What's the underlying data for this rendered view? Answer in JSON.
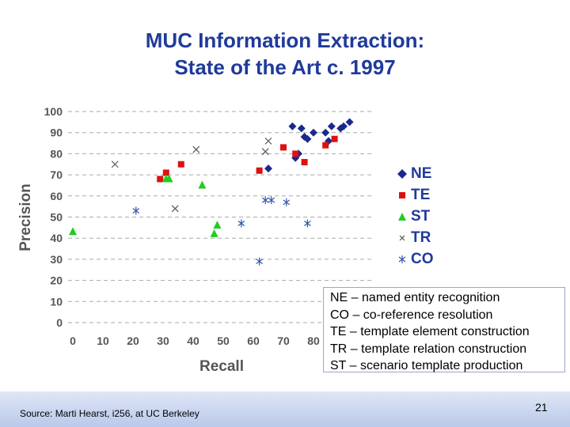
{
  "slide": {
    "title_line1": "MUC Information Extraction:",
    "title_line2": "State of the Art c. 1997",
    "notes": [
      "NE – named entity recognition",
      "CO – co-reference resolution",
      "TE – template element construction",
      "TR – template relation construction",
      "ST – scenario template production"
    ],
    "source": "Source: Marti Hearst, i256, at UC Berkeley",
    "page_number": "21"
  },
  "chart_data": {
    "type": "scatter",
    "xlabel": "Recall",
    "ylabel": "Precision",
    "xlim": [
      0,
      100
    ],
    "ylim": [
      0,
      100
    ],
    "x_ticks": [
      "0",
      "10",
      "20",
      "30",
      "40",
      "50",
      "60",
      "70",
      "80"
    ],
    "y_ticks": [
      "0",
      "10",
      "20",
      "30",
      "40",
      "50",
      "60",
      "70",
      "80",
      "90",
      "100"
    ],
    "grid": "horizontal dashed",
    "legend_position": "right",
    "series": [
      {
        "name": "NE",
        "marker": "diamond",
        "color": "#1a2a8c",
        "points": [
          [
            73,
            93
          ],
          [
            76,
            92
          ],
          [
            77,
            88
          ],
          [
            78,
            87
          ],
          [
            74,
            78
          ],
          [
            75,
            80
          ],
          [
            80,
            90
          ],
          [
            84,
            90
          ],
          [
            85,
            86
          ],
          [
            86,
            93
          ],
          [
            89,
            92
          ],
          [
            90,
            93
          ],
          [
            92,
            95
          ],
          [
            65,
            73
          ]
        ]
      },
      {
        "name": "TE",
        "marker": "square",
        "color": "#dd1111",
        "points": [
          [
            31,
            71
          ],
          [
            29,
            68
          ],
          [
            36,
            75
          ],
          [
            62,
            72
          ],
          [
            70,
            83
          ],
          [
            74,
            80
          ],
          [
            77,
            76
          ],
          [
            84,
            84
          ],
          [
            87,
            87
          ]
        ]
      },
      {
        "name": "ST",
        "marker": "triangle",
        "color": "#22cc22",
        "points": [
          [
            0,
            43
          ],
          [
            31,
            68
          ],
          [
            32,
            68
          ],
          [
            43,
            65
          ],
          [
            48,
            46
          ],
          [
            47,
            42
          ]
        ]
      },
      {
        "name": "TR",
        "marker": "x",
        "color": "#555555",
        "points": [
          [
            14,
            75
          ],
          [
            41,
            82
          ],
          [
            34,
            54
          ],
          [
            65,
            86
          ],
          [
            64,
            81
          ]
        ]
      },
      {
        "name": "CO",
        "marker": "asterisk",
        "color": "#3355aa",
        "points": [
          [
            21,
            53
          ],
          [
            56,
            47
          ],
          [
            62,
            29
          ],
          [
            64,
            58
          ],
          [
            66,
            58
          ],
          [
            71,
            57
          ],
          [
            78,
            47
          ]
        ]
      }
    ]
  }
}
